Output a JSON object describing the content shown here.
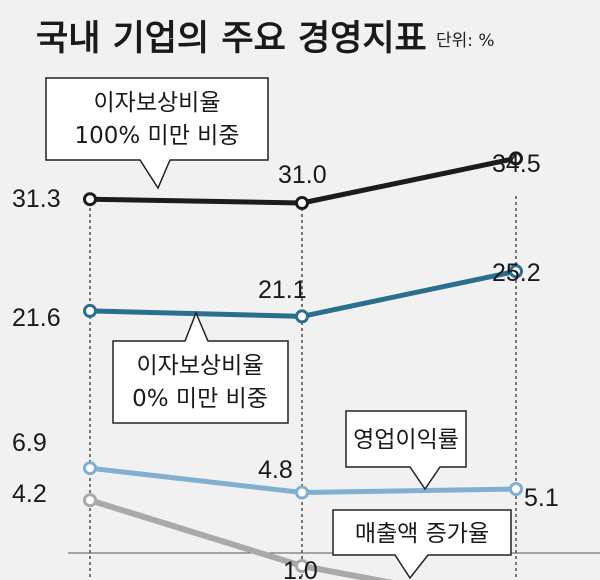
{
  "header": {
    "title": "국내 기업의 주요 경영지표",
    "unit": "단위: %"
  },
  "colors": {
    "background": "#f2f1f1",
    "series_1": "#1c1c1c",
    "series_2": "#2a6f8f",
    "series_3": "#7fb0d0",
    "series_4": "#a9a9a9"
  },
  "chart_data": {
    "type": "line",
    "title": "국내 기업의 주요 경영지표",
    "unit": "단위: %",
    "categories": [
      "",
      "",
      ""
    ],
    "grid": "vertical dashed lines at each category",
    "series": [
      {
        "name": "이자보상비율 100% 미만 비중",
        "label_lines": [
          "이자보상비율",
          "100% 미만 비중"
        ],
        "values": [
          31.3,
          31.0,
          34.5
        ],
        "value_labels": [
          "31.3",
          "31.0",
          "34.5"
        ],
        "color": "#1c1c1c"
      },
      {
        "name": "이자보상비율 0% 미만 비중",
        "label_lines": [
          "이자보상비율",
          "0% 미만 비중"
        ],
        "values": [
          21.6,
          21.1,
          25.2
        ],
        "value_labels": [
          "21.6",
          "21.1",
          "25.2"
        ],
        "color": "#2a6f8f"
      },
      {
        "name": "영업이익률",
        "label_lines": [
          "영업이익률"
        ],
        "values": [
          6.9,
          4.8,
          5.1
        ],
        "value_labels": [
          "6.9",
          "4.8",
          "5.1"
        ],
        "color": "#7fb0d0"
      },
      {
        "name": "매출액 증가율",
        "label_lines": [
          "매출액 증가율"
        ],
        "values": [
          4.2,
          1.0,
          null
        ],
        "value_labels": [
          "4.2",
          "1.0",
          ""
        ],
        "color": "#a9a9a9"
      }
    ]
  }
}
